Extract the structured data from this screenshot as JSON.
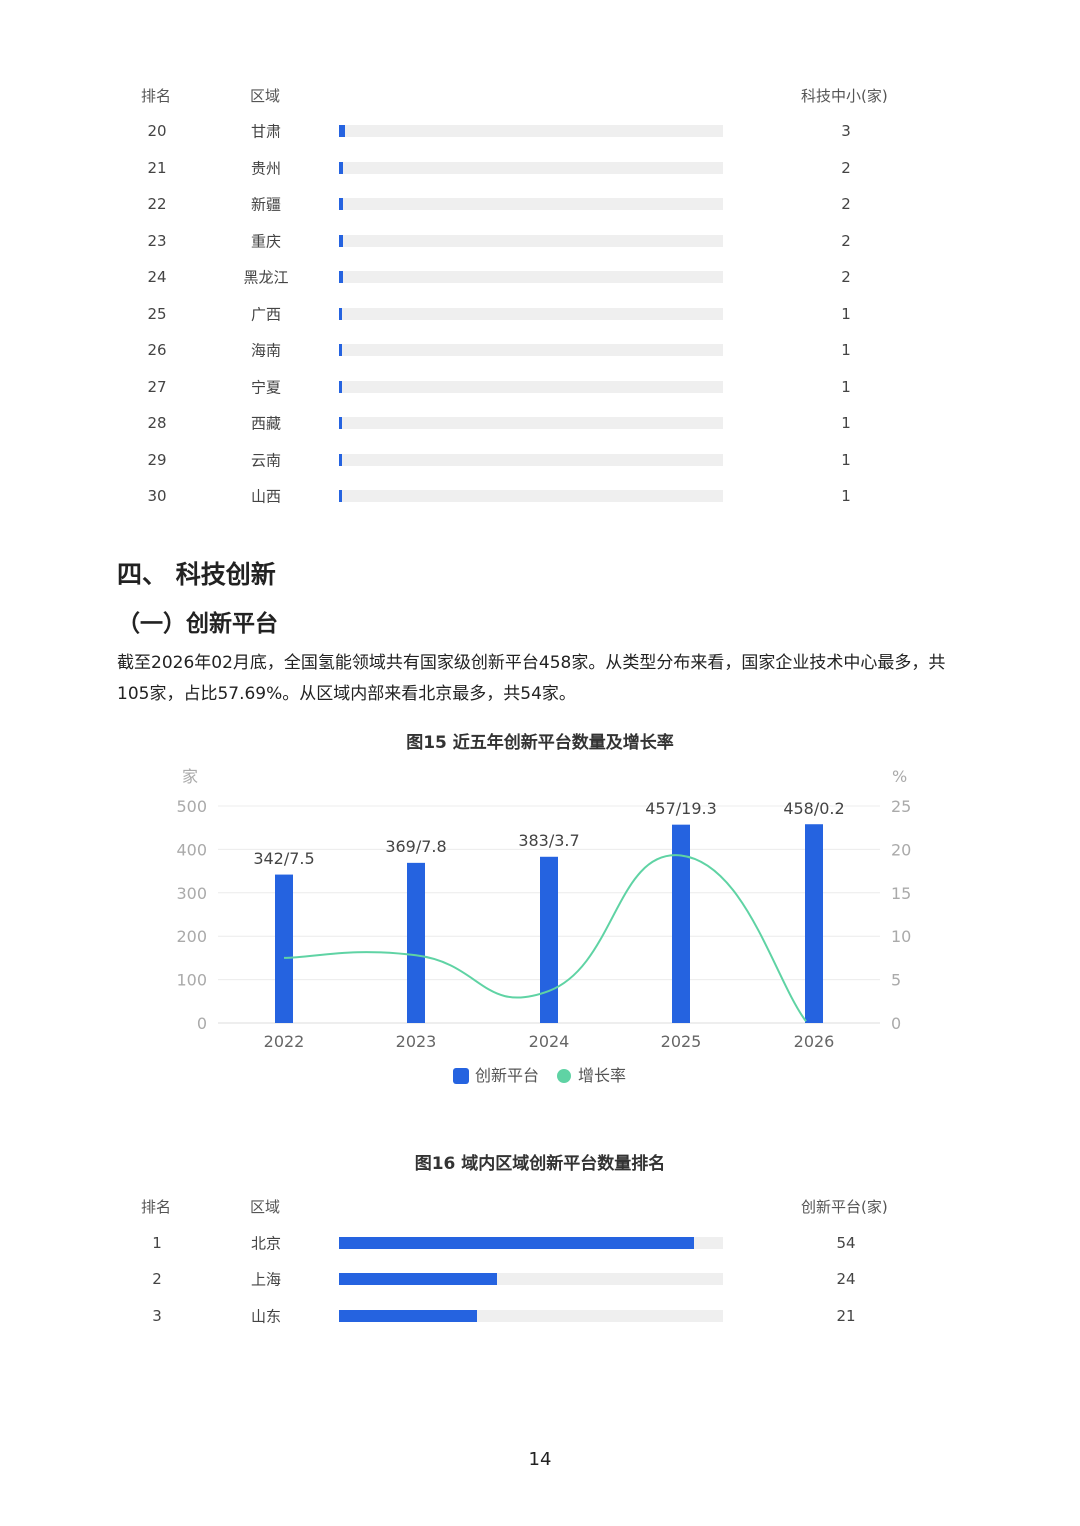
{
  "table_top": {
    "headers": {
      "rank": "排名",
      "region": "区域",
      "value": "科技中小(家)"
    },
    "rows": [
      {
        "rank": "20",
        "region": "甘肃",
        "value": 3
      },
      {
        "rank": "21",
        "region": "贵州",
        "value": 2
      },
      {
        "rank": "22",
        "region": "新疆",
        "value": 2
      },
      {
        "rank": "23",
        "region": "重庆",
        "value": 2
      },
      {
        "rank": "24",
        "region": "黑龙江",
        "value": 2
      },
      {
        "rank": "25",
        "region": "广西",
        "value": 1
      },
      {
        "rank": "26",
        "region": "海南",
        "value": 1
      },
      {
        "rank": "27",
        "region": "宁夏",
        "value": 1
      },
      {
        "rank": "28",
        "region": "西藏",
        "value": 1
      },
      {
        "rank": "29",
        "region": "云南",
        "value": 1
      },
      {
        "rank": "30",
        "region": "山西",
        "value": 1
      }
    ]
  },
  "section": {
    "title": "四、 科技创新",
    "subtitle": "（一）创新平台"
  },
  "paragraph": "截至2026年02月底，全国氢能领域共有国家级创新平台458家。从类型分布来看，国家企业技术中心最多，共105家，占比57.69%。从区域内部来看北京最多，共54家。",
  "chart_data": {
    "type": "bar",
    "title": "图15 近五年创新平台数量及增长率",
    "categories": [
      "2022",
      "2023",
      "2024",
      "2025",
      "2026"
    ],
    "series": [
      {
        "name": "创新平台",
        "type": "bar",
        "axis": "left",
        "values": [
          342,
          369,
          383,
          457,
          458
        ],
        "color": "#2563e0"
      },
      {
        "name": "增长率",
        "type": "line",
        "axis": "right",
        "values": [
          7.5,
          7.8,
          3.7,
          19.3,
          0.2
        ],
        "color": "#5fd3a4"
      }
    ],
    "data_labels": [
      "342/7.5",
      "369/7.8",
      "383/3.7",
      "457/19.3",
      "458/0.2"
    ],
    "ylabel_left": "家",
    "ylabel_right": "%",
    "ylim_left": [
      0,
      500
    ],
    "yticks_left": [
      "0",
      "100",
      "200",
      "300",
      "400",
      "500"
    ],
    "ylim_right": [
      0,
      25
    ],
    "yticks_right": [
      "0",
      "5",
      "10",
      "15",
      "20",
      "25"
    ],
    "grid": true,
    "legend": "bottom"
  },
  "fig16": {
    "title": "图16 域内区域创新平台数量排名",
    "headers": {
      "rank": "排名",
      "region": "区域",
      "value": "创新平台(家)"
    },
    "rows": [
      {
        "rank": "1",
        "region": "北京",
        "value": 54
      },
      {
        "rank": "2",
        "region": "上海",
        "value": 24
      },
      {
        "rank": "3",
        "region": "山东",
        "value": 21
      }
    ]
  },
  "page_number": "14"
}
